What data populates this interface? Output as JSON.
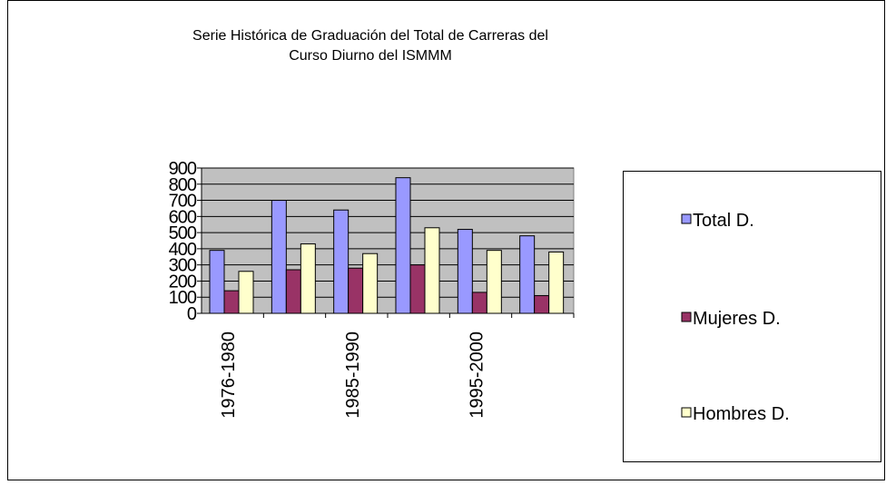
{
  "chart_data": {
    "type": "bar",
    "title": "Serie Histórica de Graduación del Total de Carreras del",
    "subtitle": "Curso Diurno del ISMMM",
    "categories": [
      "1976-1980",
      null,
      "1985-1990",
      null,
      "1995-2000",
      null
    ],
    "series": [
      {
        "name": "Total D.",
        "color": "#9999ff",
        "values": [
          390,
          700,
          640,
          840,
          520,
          480
        ]
      },
      {
        "name": "Mujeres D.",
        "color": "#993366",
        "values": [
          140,
          270,
          280,
          300,
          130,
          110
        ]
      },
      {
        "name": "Hombres D.",
        "color": "#ffffcc",
        "values": [
          260,
          430,
          370,
          530,
          390,
          380
        ]
      }
    ],
    "ylim": [
      0,
      900
    ],
    "yticks": [
      0,
      100,
      200,
      300,
      400,
      500,
      600,
      700,
      800,
      900
    ],
    "grid": true,
    "legend": "right"
  }
}
